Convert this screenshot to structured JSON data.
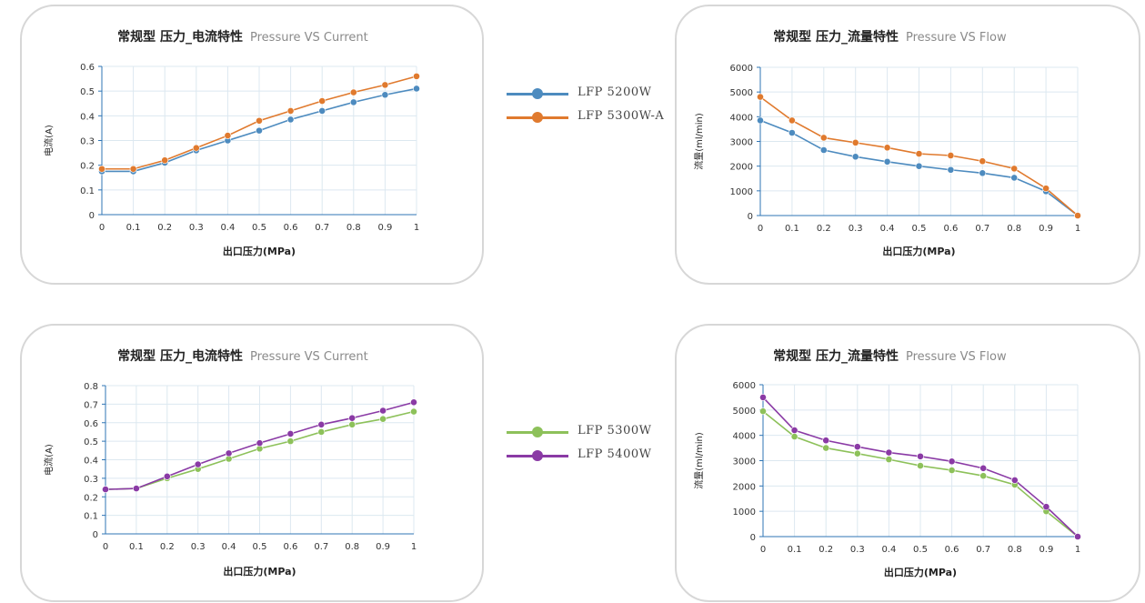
{
  "colors": {
    "blue": "#4d8bbf",
    "orange": "#e07a2e",
    "green": "#8dc15a",
    "purple": "#8a3aa5",
    "grid": "#dce8f0",
    "axis": "#2f75b5",
    "title_sub": "#8a8a8a"
  },
  "legends": [
    {
      "items": [
        {
          "label": "LFP 5200W",
          "color": "#4d8bbf"
        },
        {
          "label": "LFP 5300W-A",
          "color": "#e07a2e"
        }
      ]
    },
    {
      "items": [
        {
          "label": "LFP 5300W",
          "color": "#8dc15a"
        },
        {
          "label": "LFP 5400W",
          "color": "#8a3aa5"
        }
      ]
    }
  ],
  "chart_data": [
    {
      "type": "line",
      "title": "常规型 压力_电流特性",
      "subtitle": "Pressure VS Current",
      "xlabel": "出口压力(MPa)",
      "ylabel": "电流(A)",
      "x": [
        0,
        0.1,
        0.2,
        0.3,
        0.4,
        0.5,
        0.6,
        0.7,
        0.8,
        0.9,
        1
      ],
      "x_ticks": [
        "0",
        "0.1",
        "0.2",
        "0.3",
        "0.4",
        "0.5",
        "0.6",
        "0.7",
        "0.8",
        "0.9",
        "1"
      ],
      "ylim": [
        0,
        0.6
      ],
      "y_ticks": [
        "0",
        "0.1",
        "0.2",
        "0.3",
        "0.4",
        "0.5",
        "0.6"
      ],
      "grid": true,
      "series": [
        {
          "name": "LFP 5200W",
          "color": "#4d8bbf",
          "values": [
            0.175,
            0.175,
            0.21,
            0.26,
            0.3,
            0.34,
            0.385,
            0.42,
            0.455,
            0.485,
            0.51
          ]
        },
        {
          "name": "LFP 5300W-A",
          "color": "#e07a2e",
          "values": [
            0.185,
            0.185,
            0.22,
            0.27,
            0.32,
            0.38,
            0.42,
            0.46,
            0.495,
            0.525,
            0.56
          ]
        }
      ]
    },
    {
      "type": "line",
      "title": "常规型 压力_流量特性",
      "subtitle": "Pressure VS Flow",
      "xlabel": "出口压力(MPa)",
      "ylabel": "流量(ml/min)",
      "x": [
        0,
        0.1,
        0.2,
        0.3,
        0.4,
        0.5,
        0.6,
        0.7,
        0.8,
        0.9,
        1
      ],
      "x_ticks": [
        "0",
        "0.1",
        "0.2",
        "0.3",
        "0.4",
        "0.5",
        "0.6",
        "0.7",
        "0.8",
        "0.9",
        "1"
      ],
      "ylim": [
        0,
        6000
      ],
      "y_ticks": [
        "0",
        "1000",
        "2000",
        "3000",
        "4000",
        "5000",
        "6000"
      ],
      "grid": true,
      "series": [
        {
          "name": "LFP 5200W",
          "color": "#4d8bbf",
          "values": [
            3850,
            3350,
            2650,
            2380,
            2180,
            2000,
            1850,
            1720,
            1530,
            980,
            0
          ]
        },
        {
          "name": "LFP 5300W-A",
          "color": "#e07a2e",
          "values": [
            4800,
            3850,
            3150,
            2950,
            2750,
            2500,
            2430,
            2200,
            1900,
            1100,
            0
          ]
        }
      ]
    },
    {
      "type": "line",
      "title": "常规型 压力_电流特性",
      "subtitle": "Pressure VS Current",
      "xlabel": "出口压力(MPa)",
      "ylabel": "电流(A)",
      "x": [
        0,
        0.1,
        0.2,
        0.3,
        0.4,
        0.5,
        0.6,
        0.7,
        0.8,
        0.9,
        1
      ],
      "x_ticks": [
        "0",
        "0.1",
        "0.2",
        "0.3",
        "0.4",
        "0.5",
        "0.6",
        "0.7",
        "0.8",
        "0.9",
        "1"
      ],
      "ylim": [
        0,
        0.8
      ],
      "y_ticks": [
        "0",
        "0.1",
        "0.2",
        "0.3",
        "0.4",
        "0.5",
        "0.6",
        "0.7",
        "0.8"
      ],
      "grid": true,
      "series": [
        {
          "name": "LFP 5300W",
          "color": "#8dc15a",
          "values": [
            0.24,
            0.245,
            0.3,
            0.35,
            0.405,
            0.46,
            0.5,
            0.55,
            0.59,
            0.62,
            0.66
          ]
        },
        {
          "name": "LFP 5400W",
          "color": "#8a3aa5",
          "values": [
            0.24,
            0.245,
            0.31,
            0.375,
            0.435,
            0.49,
            0.54,
            0.59,
            0.625,
            0.665,
            0.71
          ]
        }
      ]
    },
    {
      "type": "line",
      "title": "常规型 压力_流量特性",
      "subtitle": "Pressure VS Flow",
      "xlabel": "出口压力(MPa)",
      "ylabel": "流量(ml/min)",
      "x": [
        0,
        0.1,
        0.2,
        0.3,
        0.4,
        0.5,
        0.6,
        0.7,
        0.8,
        0.9,
        1
      ],
      "x_ticks": [
        "0",
        "0.1",
        "0.2",
        "0.3",
        "0.4",
        "0.5",
        "0.6",
        "0.7",
        "0.8",
        "0.9",
        "1"
      ],
      "ylim": [
        0,
        6000
      ],
      "y_ticks": [
        "0",
        "1000",
        "2000",
        "3000",
        "4000",
        "5000",
        "6000"
      ],
      "grid": true,
      "series": [
        {
          "name": "LFP 5300W",
          "color": "#8dc15a",
          "values": [
            4950,
            3950,
            3500,
            3280,
            3050,
            2800,
            2620,
            2400,
            2050,
            1000,
            0
          ]
        },
        {
          "name": "LFP 5400W",
          "color": "#8a3aa5",
          "values": [
            5500,
            4200,
            3800,
            3550,
            3320,
            3170,
            2970,
            2700,
            2230,
            1180,
            0
          ]
        }
      ]
    }
  ]
}
